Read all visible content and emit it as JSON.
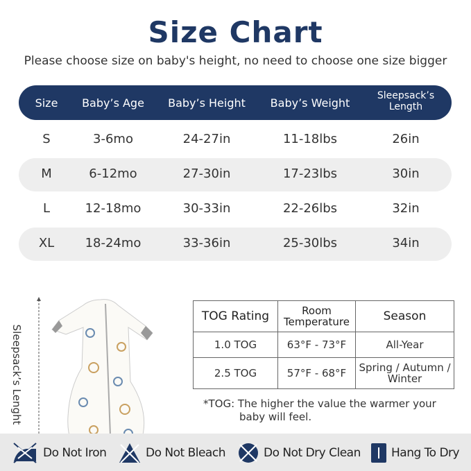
{
  "title": "Size Chart",
  "subtitle": "Please choose size on baby's height, no need to choose one size bigger",
  "size_table": {
    "headers": [
      "Size",
      "Baby’s Age",
      "Baby’s Height",
      "Baby’s Weight",
      "Sleepsack’s Length"
    ],
    "rows": [
      [
        "S",
        "3-6mo",
        "24-27in",
        "11-18lbs",
        "26in"
      ],
      [
        "M",
        "6-12mo",
        "27-30in",
        "17-23lbs",
        "30in"
      ],
      [
        "L",
        "12-18mo",
        "30-33in",
        "22-26lbs",
        "32in"
      ],
      [
        "XL",
        "18-24mo",
        "33-36in",
        "25-30lbs",
        "34in"
      ]
    ]
  },
  "length_label": "Sleepsack’s Lenght",
  "tog_table": {
    "headers": [
      "TOG Rating",
      "Room Temperature",
      "Season"
    ],
    "rows": [
      [
        "1.0 TOG",
        "63°F - 73°F",
        "All-Year"
      ],
      [
        "2.5 TOG",
        "57°F - 68°F",
        "Spring / Autumn / Winter"
      ]
    ]
  },
  "note": {
    "line1": "*TOG: The higher the value the warmer your",
    "line2": "baby will feel."
  },
  "care": [
    {
      "icon": "no-iron-icon",
      "label": "Do Not Iron"
    },
    {
      "icon": "no-bleach-icon",
      "label": "Do Not Bleach"
    },
    {
      "icon": "no-dry-clean-icon",
      "label": "Do Not Dry Clean"
    },
    {
      "icon": "hang-dry-icon",
      "label": "Hang To Dry"
    }
  ],
  "colors": {
    "navy": "#1f3864",
    "row_alt": "#eeeeee",
    "care_bar": "#e9e9e9"
  }
}
